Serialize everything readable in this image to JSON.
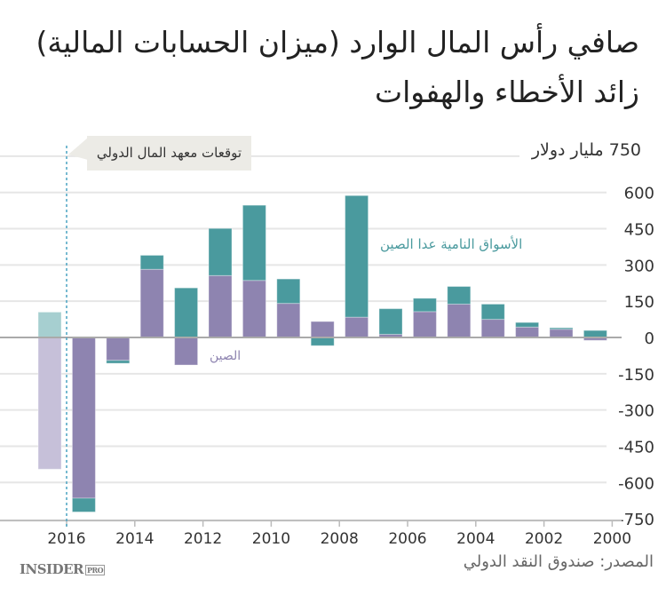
{
  "title": {
    "line1": "صافي رأس المال الوارد (ميزان الحسابات المالية)",
    "line2": "زائد الأخطاء والهفوات"
  },
  "callout": "توقعات معهد المال الدولي",
  "source": "المصدر: صندوق النقد الدولي",
  "logo": {
    "main": "INSIDER",
    "sub": "PRO"
  },
  "colors": {
    "china": "#8e84b0",
    "others": "#4a9a9e",
    "china_forecast": "#c6c0d9",
    "others_forecast": "#a6cfd0",
    "forecast_line": "#4aa3c2"
  },
  "chart_data": {
    "type": "bar",
    "stacked": true,
    "x_reversed": true,
    "unit_label": "750 مليار دولار",
    "categories": [
      "توقعات",
      "2016",
      "2015",
      "2014",
      "2013",
      "2012",
      "2011",
      "2010",
      "2009",
      "2008",
      "2007",
      "2006",
      "2005",
      "2004",
      "2003",
      "2002",
      "2001"
    ],
    "forecast_index": 0,
    "series": [
      {
        "name": "الصين",
        "key": "china",
        "values": [
          -545,
          -665,
          -95,
          282,
          -114,
          256,
          236,
          141,
          66,
          84,
          13,
          107,
          138,
          75,
          43,
          34,
          -12
        ]
      },
      {
        "name": "الأسواق النامية عدا الصين",
        "key": "others",
        "values": [
          105,
          -57,
          -12,
          58,
          205,
          195,
          311,
          101,
          -34,
          503,
          106,
          55,
          73,
          63,
          19,
          6,
          29
        ]
      }
    ],
    "xticks": [
      "2016",
      "2014",
      "2012",
      "2010",
      "2008",
      "2006",
      "2004",
      "2002",
      "2000"
    ],
    "yticks": [
      "600",
      "450",
      "300",
      "150",
      "0",
      "-150",
      "-300",
      "-450",
      "-600",
      "-750"
    ],
    "ylim": [
      -750,
      750
    ],
    "grid": true
  }
}
